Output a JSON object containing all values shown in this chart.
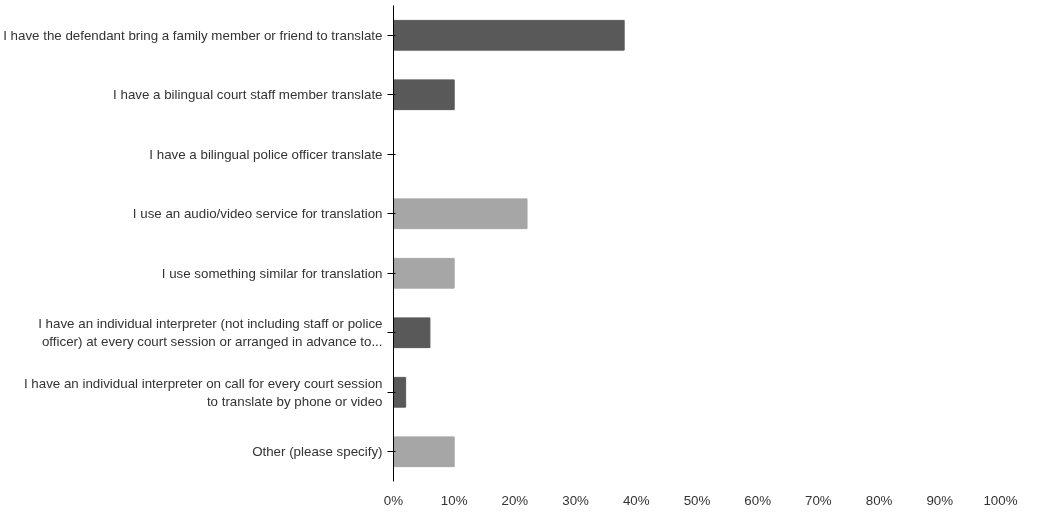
{
  "chart_data": {
    "type": "bar",
    "orientation": "horizontal",
    "categories": [
      "I have the defendant bring a family member or friend to translate",
      "I have a bilingual court staff member translate",
      "I have a bilingual police officer translate",
      "I use an audio/video service for translation",
      "I use something similar for translation",
      "I have an individual interpreter (not including staff or police officer) at every court session or arranged in advance to...",
      "I have an individual interpreter on call for every court session to translate by phone or video",
      "Other (please specify)"
    ],
    "values": [
      38,
      10,
      0,
      22,
      10,
      6,
      2,
      10
    ],
    "colors": [
      "#595959",
      "#595959",
      "#595959",
      "#a6a6a6",
      "#a6a6a6",
      "#595959",
      "#595959",
      "#a6a6a6"
    ],
    "xlim": [
      0,
      100
    ],
    "xticks": [
      {
        "value": 0,
        "label": "0%"
      },
      {
        "value": 10,
        "label": "10%"
      },
      {
        "value": 20,
        "label": "20%"
      },
      {
        "value": 30,
        "label": "30%"
      },
      {
        "value": 40,
        "label": "40%"
      },
      {
        "value": 50,
        "label": "50%"
      },
      {
        "value": 60,
        "label": "60%"
      },
      {
        "value": 70,
        "label": "70%"
      },
      {
        "value": 80,
        "label": "80%"
      },
      {
        "value": 90,
        "label": "90%"
      },
      {
        "value": 100,
        "label": "100%"
      }
    ],
    "grid": false
  }
}
